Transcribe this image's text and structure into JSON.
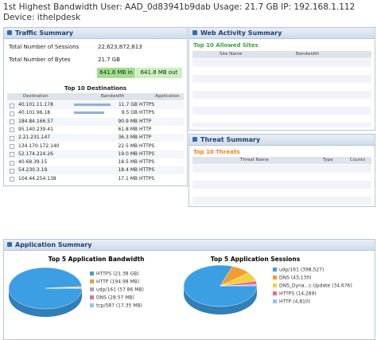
{
  "header": {
    "text": "1st Highest Bandwidth User: AAD_0d83941b9dab Usage: 21.7 GB IP: 192.168.1.112 Device: ithelpdesk"
  },
  "traffic_summary": {
    "title": "Traffic Summary",
    "stats": [
      {
        "label": "Total Number of Sessions",
        "value": "22,623,872,813"
      },
      {
        "label": "Total Number of Bytes",
        "value": "21.7 GB"
      }
    ],
    "bytes_in": "641.8 MB in",
    "bytes_out": "641.8 MB out",
    "destinations": {
      "title": "Top 10 Destinations",
      "columns": [
        "Destination",
        "Bandwidth",
        "Application"
      ],
      "rows": [
        [
          "40.101.11.178",
          "11.7 GB",
          "HTTPS"
        ],
        [
          "40.101.96.18",
          "9.5 GB",
          "HTTPS"
        ],
        [
          "184.84.166.57",
          "90.9 MB",
          "HTTP"
        ],
        [
          "95.140.239.41",
          "61.8 MB",
          "HTTP"
        ],
        [
          "2.21.231.147",
          "36.3 MB",
          "HTTP"
        ],
        [
          "134.170.172.140",
          "22.5 MB",
          "HTTPS"
        ],
        [
          "52.174.224.26",
          "19.0 MB",
          "HTTPS"
        ],
        [
          "40.68.39.15",
          "18.5 MB",
          "HTTPS"
        ],
        [
          "54.230.3.19",
          "18.4 MB",
          "HTTPS"
        ],
        [
          "104.44.254.138",
          "17.1 MB",
          "HTTPS"
        ]
      ]
    }
  },
  "web_activity_summary": {
    "title": "Web Activity Summary",
    "allowed_sites": {
      "title": "Top 10 Allowed Sites",
      "columns": [
        "Site Name",
        "Bandwidth"
      ]
    }
  },
  "threat_summary": {
    "title": "Threat Summary",
    "threats": {
      "title": "Top 10 Threats",
      "columns": [
        "Threat Name",
        "Type",
        "Counts"
      ]
    }
  },
  "application_summary": {
    "title": "Application Summary",
    "charts": [
      {
        "title": "Top 5 Application Bandwidth",
        "slices": [
          {
            "label": "HTTPS (21.38 GB)",
            "value": 21380,
            "color": "#3d9fe3"
          },
          {
            "label": "HTTP (194.98 MB)",
            "value": 194.98,
            "color": "#f39c32"
          },
          {
            "label": "udp/161 (57.86 MB)",
            "value": 57.86,
            "color": "#a9a9a9"
          },
          {
            "label": "DNS (28.57 MB)",
            "value": 28.57,
            "color": "#ee6a8a"
          },
          {
            "label": "tcp/587 (17.35 MB)",
            "value": 17.35,
            "color": "#8fc6ef"
          }
        ]
      },
      {
        "title": "Top 5 Application Sessions",
        "slices": [
          {
            "label": "udp/161 (398,527)",
            "value": 398527,
            "color": "#3d9fe3"
          },
          {
            "label": "DNS (43,130)",
            "value": 43130,
            "color": "#f39c32"
          },
          {
            "label": "DNS_Dyna...c.Update (34,676)",
            "value": 34676,
            "color": "#f2d23a"
          },
          {
            "label": "HTTPS (14,289)",
            "value": 14289,
            "color": "#ee6a8a"
          },
          {
            "label": "HTTP (4,810)",
            "value": 4810,
            "color": "#8fc6ef"
          }
        ]
      }
    ]
  }
}
